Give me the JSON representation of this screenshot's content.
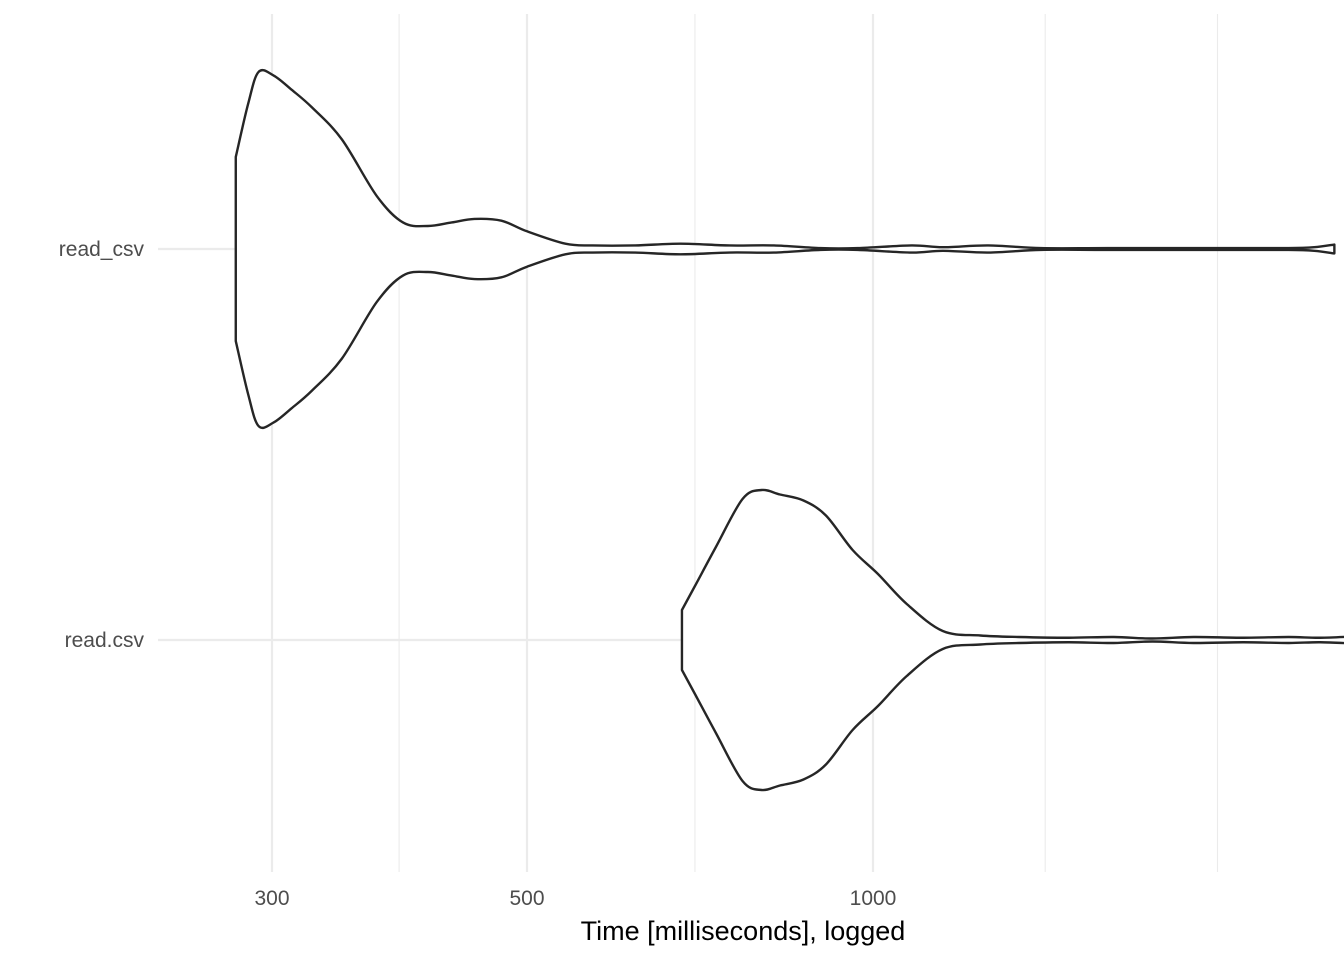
{
  "chart_data": {
    "type": "violin",
    "orientation": "horizontal",
    "title": "",
    "xlabel": "Time [milliseconds], logged",
    "ylabel": "",
    "x_scale": "log10",
    "xlim": [
      270,
      2650
    ],
    "x_major_ticks": [
      300,
      500,
      1000
    ],
    "x_tick_labels": [
      "300",
      "500",
      "1000"
    ],
    "x_minor_ticks": [
      387,
      700,
      1412,
      1994
    ],
    "categories": [
      "read_csv",
      "read.csv"
    ],
    "grid": true,
    "legend": "none",
    "series": [
      {
        "category": "read_csv",
        "min": 279,
        "max": 2520,
        "density": [
          [
            279,
            0.52
          ],
          [
            286,
            0.82
          ],
          [
            292,
            1.0
          ],
          [
            301,
            0.98
          ],
          [
            312,
            0.9
          ],
          [
            325,
            0.8
          ],
          [
            345,
            0.62
          ],
          [
            370,
            0.3
          ],
          [
            390,
            0.15
          ],
          [
            410,
            0.13
          ],
          [
            430,
            0.15
          ],
          [
            450,
            0.17
          ],
          [
            475,
            0.16
          ],
          [
            500,
            0.1
          ],
          [
            540,
            0.03
          ],
          [
            570,
            0.02
          ],
          [
            620,
            0.02
          ],
          [
            680,
            0.03
          ],
          [
            750,
            0.02
          ],
          [
            820,
            0.02
          ],
          [
            900,
            0.005
          ],
          [
            970,
            0.005
          ],
          [
            1080,
            0.02
          ],
          [
            1150,
            0.01
          ],
          [
            1260,
            0.02
          ],
          [
            1400,
            0.005
          ],
          [
            1600,
            0.005
          ],
          [
            2000,
            0.005
          ],
          [
            2300,
            0.005
          ],
          [
            2420,
            0.01
          ],
          [
            2520,
            0.025
          ]
        ]
      },
      {
        "category": "read.csv",
        "min": 682,
        "max": 2650,
        "density": [
          [
            682,
            0.2
          ],
          [
            700,
            0.36
          ],
          [
            730,
            0.62
          ],
          [
            770,
            0.94
          ],
          [
            800,
            1.0
          ],
          [
            830,
            0.97
          ],
          [
            870,
            0.93
          ],
          [
            910,
            0.83
          ],
          [
            960,
            0.6
          ],
          [
            1010,
            0.44
          ],
          [
            1070,
            0.24
          ],
          [
            1150,
            0.06
          ],
          [
            1240,
            0.03
          ],
          [
            1340,
            0.02
          ],
          [
            1480,
            0.015
          ],
          [
            1620,
            0.02
          ],
          [
            1750,
            0.01
          ],
          [
            1900,
            0.02
          ],
          [
            2100,
            0.015
          ],
          [
            2300,
            0.02
          ],
          [
            2450,
            0.015
          ],
          [
            2650,
            0.025
          ]
        ]
      }
    ]
  }
}
